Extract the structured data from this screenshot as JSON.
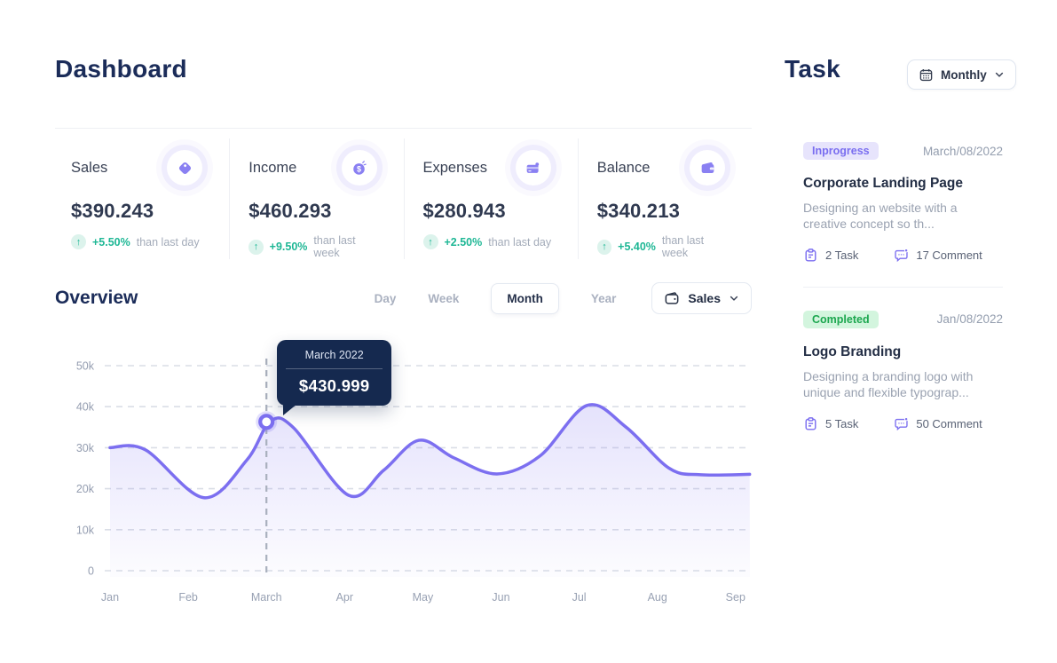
{
  "page": {
    "dashboard_title": "Dashboard"
  },
  "stats": [
    {
      "label": "Sales",
      "icon": "tag-icon",
      "value": "$390.243",
      "change": "+5.50%",
      "change_note": "than last day"
    },
    {
      "label": "Income",
      "icon": "coin-dollar-icon",
      "value": "$460.293",
      "change": "+9.50%",
      "change_note": "than last week"
    },
    {
      "label": "Expenses",
      "icon": "credit-card-icon",
      "value": "$280.943",
      "change": "+2.50%",
      "change_note": "than last day"
    },
    {
      "label": "Balance",
      "icon": "wallet-icon",
      "value": "$340.213",
      "change": "+5.40%",
      "change_note": "than last week"
    }
  ],
  "overview": {
    "title": "Overview",
    "tabs": [
      {
        "label": "Day",
        "active": false
      },
      {
        "label": "Week",
        "active": false
      },
      {
        "label": "Month",
        "active": true
      },
      {
        "label": "Year",
        "active": false
      }
    ],
    "filter": {
      "label": "Sales"
    }
  },
  "task_panel": {
    "title": "Task",
    "filter": {
      "label": "Monthly"
    },
    "tasks": [
      {
        "status": "Inprogress",
        "status_color": "#7a6ef0",
        "status_bg": "#e7e4fc",
        "date": "March/08/2022",
        "title": "Corporate Landing Page",
        "description": "Designing an website with a creative concept so th...",
        "task_count": "2 Task",
        "comment_count": "17 Comment"
      },
      {
        "status": "Completed",
        "status_color": "#1ca74f",
        "status_bg": "#d3f5de",
        "date": "Jan/08/2022",
        "title": "Logo Branding",
        "description": "Designing a branding logo with unique and flexible typograp...",
        "task_count": "5 Task",
        "comment_count": "50 Comment"
      }
    ]
  },
  "chart_data": {
    "type": "area",
    "title": "Overview",
    "series_name": "Sales",
    "categories": [
      "Jan",
      "Feb",
      "March",
      "Apr",
      "May",
      "Jun",
      "Jul",
      "Aug",
      "Sep"
    ],
    "yticks": [
      {
        "label": "50k",
        "value": 50
      },
      {
        "label": "40k",
        "value": 40
      },
      {
        "label": "30k",
        "value": 30
      },
      {
        "label": "20k",
        "value": 20
      },
      {
        "label": "10k",
        "value": 10
      },
      {
        "label": "0",
        "value": 0
      }
    ],
    "ylim": [
      0,
      50
    ],
    "grid": "dashed-horizontal",
    "legend": "none",
    "line_color": "#7c6ff0",
    "monthly_values_k": [
      30,
      21.5,
      36.3,
      18.5,
      31.8,
      23.7,
      40.2,
      26.5,
      23.5
    ],
    "curve_points": [
      [
        0,
        30
      ],
      [
        0.45,
        29.5
      ],
      [
        1.2,
        17.8
      ],
      [
        1.75,
        27
      ],
      [
        2.05,
        36.4
      ],
      [
        2.35,
        34.8
      ],
      [
        3.05,
        18.4
      ],
      [
        3.5,
        24.5
      ],
      [
        3.95,
        31.8
      ],
      [
        4.4,
        27.5
      ],
      [
        4.95,
        23.6
      ],
      [
        5.5,
        28
      ],
      [
        6.1,
        40.3
      ],
      [
        6.6,
        35
      ],
      [
        7.15,
        25
      ],
      [
        7.55,
        23.4
      ],
      [
        8.18,
        23.5
      ]
    ],
    "marker": {
      "month_index": 2,
      "value_k": 36.3,
      "label": "March 2022",
      "value_label": "$430.999"
    }
  }
}
